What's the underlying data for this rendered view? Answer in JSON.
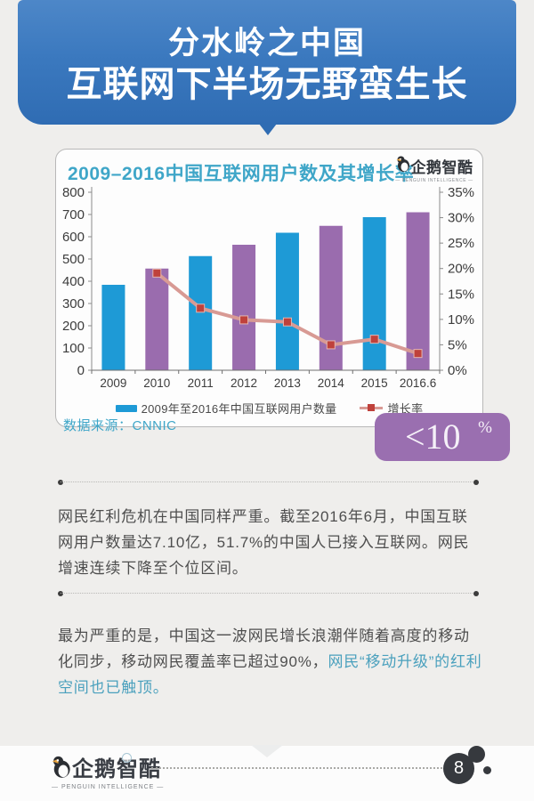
{
  "header": {
    "line1": "分水岭之中国",
    "line2": "互联网下半场无野蛮生长"
  },
  "chart_card": {
    "title": "2009–2016中国互联网用户数及其增长率",
    "brand_name": "企鹅智酷",
    "brand_subtitle": "— PENGUIN INTELLIGENCE —",
    "source": "数据来源：CNNIC"
  },
  "chart_data": {
    "type": "bar",
    "subtype": "bar+line combo, dual axis",
    "title": "2009–2016中国互联网用户数及其增长率",
    "categories": [
      "2009",
      "2010",
      "2011",
      "2012",
      "2013",
      "2014",
      "2015",
      "2016.6"
    ],
    "series": [
      {
        "name": "2009年至2016年中国互联网用户数量",
        "kind": "bar",
        "axis": "left",
        "values": [
          384,
          457,
          513,
          564,
          618,
          649,
          688,
          710
        ],
        "bar_colors": [
          "#1e9ad6",
          "#9a6cae",
          "#1e9ad6",
          "#9a6cae",
          "#1e9ad6",
          "#9a6cae",
          "#1e9ad6",
          "#9a6cae"
        ]
      },
      {
        "name": "增长率",
        "kind": "line",
        "axis": "right",
        "values": [
          null,
          19.1,
          12.2,
          9.9,
          9.5,
          5.0,
          6.1,
          3.3
        ],
        "line_color": "#d89a94",
        "marker_color": "#bf413b"
      }
    ],
    "left_axis": {
      "min": 0,
      "max": 800,
      "step": 100
    },
    "right_axis": {
      "min": 0,
      "max": 35,
      "step": 5,
      "suffix": "%"
    },
    "grid": false,
    "legend_position": "bottom",
    "axis_color": "#8a8a8a",
    "label_color": "#3c3c3c"
  },
  "badge": {
    "value": "<10",
    "unit": "%",
    "bg": "#9a6fb0"
  },
  "sections": {
    "p1": {
      "text": "网民红利危机在中国同样严重。截至2016年6月，中国互联网用户数量达7.10亿，51.7%的中国人已接入互联网。网民增速连续下降至个位区间。"
    },
    "p2": {
      "text_plain": "最为严重的是，中国这一波网民增长浪潮伴随着高度的移动化同步，移动网民覆盖率已超过90%，",
      "text_highlight": "网民“移动升级”的红利空间也已触顶。",
      "highlight_color": "#4aa0bd"
    }
  },
  "footer": {
    "brand_name": "企鹅智酷",
    "brand_subtitle": "— PENGUIN INTELLIGENCE —",
    "page_number": "8"
  }
}
